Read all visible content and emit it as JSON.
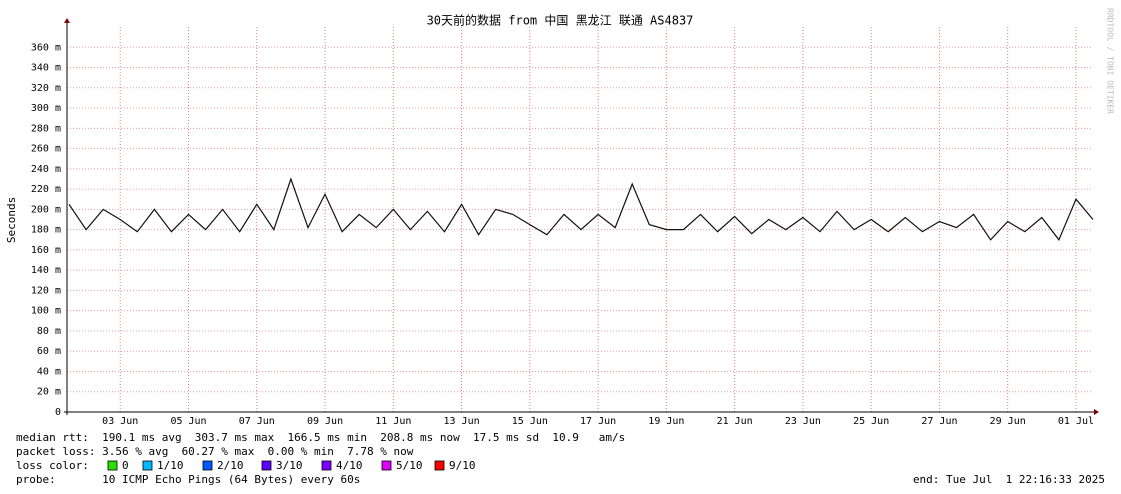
{
  "chart_data": {
    "type": "line",
    "title": "30天前的数据 from 中国 黑龙江 联通 AS4837",
    "y_label": "Seconds",
    "watermark": "RRDTOOL / TOBI OETIKER",
    "color": "#111111",
    "grid": true,
    "ylim": [
      0,
      380
    ],
    "yticks": [
      0,
      {
        "value": 20,
        "label": "20 m"
      },
      {
        "value": 40,
        "label": "40 m"
      },
      {
        "value": 60,
        "label": "60 m"
      },
      {
        "value": 80,
        "label": "80 m"
      },
      {
        "value": 100,
        "label": "100 m"
      },
      {
        "value": 120,
        "label": "120 m"
      },
      {
        "value": 140,
        "label": "140 m"
      },
      {
        "value": 160,
        "label": "160 m"
      },
      {
        "value": 180,
        "label": "180 m"
      },
      {
        "value": 200,
        "label": "200 m"
      },
      {
        "value": 220,
        "label": "220 m"
      },
      {
        "value": 240,
        "label": "240 m"
      },
      {
        "value": 260,
        "label": "260 m"
      },
      {
        "value": 280,
        "label": "280 m"
      },
      {
        "value": 300,
        "label": "300 m"
      },
      {
        "value": 320,
        "label": "320 m"
      },
      {
        "value": 340,
        "label": "340 m"
      },
      {
        "value": 360,
        "label": "360 m"
      }
    ],
    "xlim": [
      1.44,
      31.47
    ],
    "xticks": [
      {
        "value": 3,
        "label": "03 Jun"
      },
      {
        "value": 5,
        "label": "05 Jun"
      },
      {
        "value": 7,
        "label": "07 Jun"
      },
      {
        "value": 9,
        "label": "09 Jun"
      },
      {
        "value": 11,
        "label": "11 Jun"
      },
      {
        "value": 13,
        "label": "13 Jun"
      },
      {
        "value": 15,
        "label": "15 Jun"
      },
      {
        "value": 17,
        "label": "17 Jun"
      },
      {
        "value": 19,
        "label": "19 Jun"
      },
      {
        "value": 21,
        "label": "21 Jun"
      },
      {
        "value": 23,
        "label": "23 Jun"
      },
      {
        "value": 25,
        "label": "25 Jun"
      },
      {
        "value": 27,
        "label": "27 Jun"
      },
      {
        "value": 29,
        "label": "29 Jun"
      },
      {
        "value": 31,
        "label": "01 Jul"
      }
    ],
    "x": [
      1.5,
      2,
      2.5,
      3,
      3.5,
      4,
      4.5,
      5,
      5.5,
      6,
      6.5,
      7,
      7.5,
      8,
      8.5,
      9,
      9.5,
      10,
      10.5,
      11,
      11.5,
      12,
      12.5,
      13,
      13.5,
      14,
      14.5,
      15,
      15.5,
      16,
      16.5,
      17,
      17.5,
      18,
      18.5,
      19,
      19.5,
      20,
      20.5,
      21,
      21.5,
      22,
      22.5,
      23,
      23.5,
      24,
      24.5,
      25,
      25.5,
      26,
      26.5,
      27,
      27.5,
      28,
      28.5,
      29,
      29.5,
      30,
      30.5,
      31,
      31.5
    ],
    "values": [
      205,
      180,
      200,
      190,
      178,
      200,
      178,
      195,
      180,
      200,
      178,
      205,
      180,
      230,
      182,
      215,
      178,
      195,
      182,
      200,
      180,
      198,
      178,
      205,
      175,
      200,
      195,
      185,
      175,
      195,
      180,
      195,
      182,
      225,
      185,
      180,
      180,
      195,
      178,
      193,
      176,
      190,
      180,
      192,
      178,
      198,
      180,
      190,
      178,
      192,
      178,
      188,
      182,
      195,
      170,
      188,
      178,
      192,
      170,
      210,
      190
    ],
    "stats": [
      "median rtt:  190.1 ms avg  303.7 ms max  166.5 ms min  208.8 ms now  17.5 ms sd  10.9   am/s",
      "packet loss: 3.56 % avg  60.27 % max  0.00 % min  7.78 % now"
    ],
    "loss_color_label": "loss color:",
    "loss_colors": [
      {
        "label": "0",
        "color": "#26e000"
      },
      {
        "label": "1/10",
        "color": "#00b8ff"
      },
      {
        "label": "2/10",
        "color": "#0059ff"
      },
      {
        "label": "3/10",
        "color": "#5e00ff"
      },
      {
        "label": "4/10",
        "color": "#7e00ff"
      },
      {
        "label": "5/10",
        "color": "#dd00ff"
      },
      {
        "label": "9/10",
        "color": "#ff0000"
      }
    ],
    "probe": "probe:       10 ICMP Echo Pings (64 Bytes) every 60s",
    "end": "end: Tue Jul  1 22:16:33 2025"
  }
}
